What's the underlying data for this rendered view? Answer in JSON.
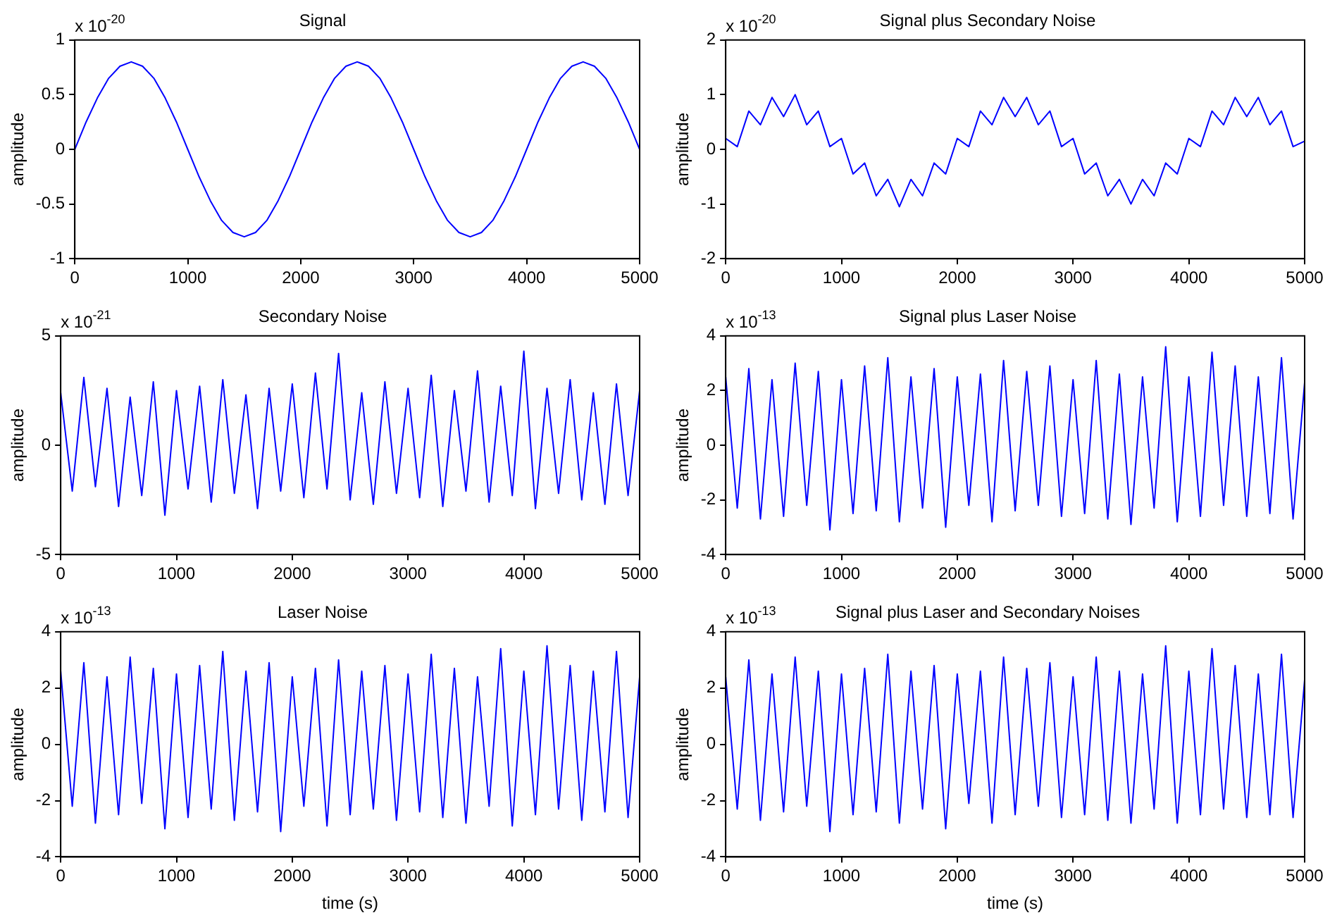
{
  "chart_data": [
    {
      "type": "line",
      "title": "Signal",
      "ylabel": "amplitude",
      "annotations": [
        "x 10$^{-20}$"
      ],
      "xlim": [
        0,
        5000
      ],
      "xticks": [
        0,
        1000,
        2000,
        3000,
        4000,
        5000
      ],
      "ylim": [
        -1,
        1
      ],
      "yticks": [
        -1,
        -0.5,
        0,
        0.5,
        1
      ],
      "grid": false,
      "legend": false,
      "x": [
        0,
        100,
        200,
        300,
        400,
        500,
        600,
        700,
        800,
        900,
        1000,
        1100,
        1200,
        1300,
        1400,
        1500,
        1600,
        1700,
        1800,
        1900,
        2000,
        2100,
        2200,
        2300,
        2400,
        2500,
        2600,
        2700,
        2800,
        2900,
        3000,
        3100,
        3200,
        3300,
        3400,
        3500,
        3600,
        3700,
        3800,
        3900,
        4000,
        4100,
        4200,
        4300,
        4400,
        4500,
        4600,
        4700,
        4800,
        4900,
        5000
      ],
      "series": [
        {
          "color": "#0000ff",
          "values": [
            0,
            0.25,
            0.47,
            0.65,
            0.76,
            0.8,
            0.76,
            0.65,
            0.47,
            0.25,
            0,
            -0.25,
            -0.47,
            -0.65,
            -0.76,
            -0.8,
            -0.76,
            -0.65,
            -0.47,
            -0.25,
            0,
            0.25,
            0.47,
            0.65,
            0.76,
            0.8,
            0.76,
            0.65,
            0.47,
            0.25,
            0,
            -0.25,
            -0.47,
            -0.65,
            -0.76,
            -0.8,
            -0.76,
            -0.65,
            -0.47,
            -0.25,
            0,
            0.25,
            0.47,
            0.65,
            0.76,
            0.8,
            0.76,
            0.65,
            0.47,
            0.25,
            0
          ]
        }
      ]
    },
    {
      "type": "line",
      "title": "Signal plus Secondary Noise",
      "ylabel": "amplitude",
      "annotations": [
        "x 10$^{-20}$"
      ],
      "xlim": [
        0,
        5000
      ],
      "xticks": [
        0,
        1000,
        2000,
        3000,
        4000,
        5000
      ],
      "ylim": [
        -2,
        2
      ],
      "yticks": [
        -2,
        -1,
        0,
        1,
        2
      ],
      "grid": false,
      "legend": false,
      "x": [
        0,
        100,
        200,
        300,
        400,
        500,
        600,
        700,
        800,
        900,
        1000,
        1100,
        1200,
        1300,
        1400,
        1500,
        1600,
        1700,
        1800,
        1900,
        2000,
        2100,
        2200,
        2300,
        2400,
        2500,
        2600,
        2700,
        2800,
        2900,
        3000,
        3100,
        3200,
        3300,
        3400,
        3500,
        3600,
        3700,
        3800,
        3900,
        4000,
        4100,
        4200,
        4300,
        4400,
        4500,
        4600,
        4700,
        4800,
        4900,
        5000
      ],
      "series": [
        {
          "color": "#0000ff",
          "values": [
            0.2,
            0.05,
            0.7,
            0.45,
            0.95,
            0.6,
            1.0,
            0.45,
            0.7,
            0.05,
            0.2,
            -0.45,
            -0.25,
            -0.85,
            -0.55,
            -1.05,
            -0.55,
            -0.85,
            -0.25,
            -0.45,
            0.2,
            0.05,
            0.7,
            0.45,
            0.95,
            0.6,
            0.95,
            0.45,
            0.7,
            0.05,
            0.2,
            -0.45,
            -0.25,
            -0.85,
            -0.55,
            -1.0,
            -0.55,
            -0.85,
            -0.25,
            -0.45,
            0.2,
            0.05,
            0.7,
            0.45,
            0.95,
            0.6,
            0.95,
            0.45,
            0.7,
            0.05,
            0.15
          ]
        }
      ]
    },
    {
      "type": "line",
      "title": "Secondary Noise",
      "ylabel": "amplitude",
      "annotations": [
        "x 10$^{-21}$"
      ],
      "xlim": [
        0,
        5000
      ],
      "xticks": [
        0,
        1000,
        2000,
        3000,
        4000,
        5000
      ],
      "ylim": [
        -5,
        5
      ],
      "yticks": [
        -5,
        0,
        5
      ],
      "grid": false,
      "legend": false,
      "x": [
        0,
        100,
        200,
        300,
        400,
        500,
        600,
        700,
        800,
        900,
        1000,
        1100,
        1200,
        1300,
        1400,
        1500,
        1600,
        1700,
        1800,
        1900,
        2000,
        2100,
        2200,
        2300,
        2400,
        2500,
        2600,
        2700,
        2800,
        2900,
        3000,
        3100,
        3200,
        3300,
        3400,
        3500,
        3600,
        3700,
        3800,
        3900,
        4000,
        4100,
        4200,
        4300,
        4400,
        4500,
        4600,
        4700,
        4800,
        4900,
        5000
      ],
      "series": [
        {
          "color": "#0000ff",
          "values": [
            2.4,
            -2.1,
            3.1,
            -1.9,
            2.6,
            -2.8,
            2.2,
            -2.3,
            2.9,
            -3.2,
            2.5,
            -2.0,
            2.7,
            -2.6,
            3.0,
            -2.2,
            2.3,
            -2.9,
            2.6,
            -2.1,
            2.8,
            -2.4,
            3.3,
            -2.0,
            4.2,
            -2.5,
            2.4,
            -2.7,
            2.9,
            -2.2,
            2.6,
            -2.4,
            3.2,
            -2.8,
            2.5,
            -2.1,
            3.4,
            -2.6,
            2.7,
            -2.3,
            4.3,
            -2.9,
            2.6,
            -2.2,
            3.0,
            -2.5,
            2.4,
            -2.7,
            2.8,
            -2.3,
            2.5
          ]
        }
      ]
    },
    {
      "type": "line",
      "title": "Signal plus Laser Noise",
      "ylabel": "amplitude",
      "annotations": [
        "x 10$^{-13}$"
      ],
      "xlim": [
        0,
        5000
      ],
      "xticks": [
        0,
        1000,
        2000,
        3000,
        4000,
        5000
      ],
      "ylim": [
        -4,
        4
      ],
      "yticks": [
        -4,
        -2,
        0,
        2,
        4
      ],
      "grid": false,
      "legend": false,
      "x": [
        0,
        100,
        200,
        300,
        400,
        500,
        600,
        700,
        800,
        900,
        1000,
        1100,
        1200,
        1300,
        1400,
        1500,
        1600,
        1700,
        1800,
        1900,
        2000,
        2100,
        2200,
        2300,
        2400,
        2500,
        2600,
        2700,
        2800,
        2900,
        3000,
        3100,
        3200,
        3300,
        3400,
        3500,
        3600,
        3700,
        3800,
        3900,
        4000,
        4100,
        4200,
        4300,
        4400,
        4500,
        4600,
        4700,
        4800,
        4900,
        5000
      ],
      "series": [
        {
          "color": "#0000ff",
          "values": [
            2.5,
            -2.3,
            2.8,
            -2.7,
            2.4,
            -2.6,
            3.0,
            -2.2,
            2.7,
            -3.1,
            2.4,
            -2.5,
            2.9,
            -2.4,
            3.2,
            -2.8,
            2.5,
            -2.3,
            2.8,
            -3.0,
            2.5,
            -2.2,
            2.6,
            -2.8,
            3.1,
            -2.4,
            2.7,
            -2.2,
            2.9,
            -2.6,
            2.4,
            -2.5,
            3.1,
            -2.7,
            2.6,
            -2.9,
            2.5,
            -2.3,
            3.6,
            -2.8,
            2.5,
            -2.6,
            3.4,
            -2.2,
            2.9,
            -2.6,
            2.5,
            -2.5,
            3.2,
            -2.7,
            2.3
          ]
        }
      ]
    },
    {
      "type": "line",
      "title": "Laser Noise",
      "xlabel": "time (s)",
      "ylabel": "amplitude",
      "annotations": [
        "x 10$^{-13}$"
      ],
      "xlim": [
        0,
        5000
      ],
      "xticks": [
        0,
        1000,
        2000,
        3000,
        4000,
        5000
      ],
      "ylim": [
        -4,
        4
      ],
      "yticks": [
        -4,
        -2,
        0,
        2,
        4
      ],
      "grid": false,
      "legend": false,
      "x": [
        0,
        100,
        200,
        300,
        400,
        500,
        600,
        700,
        800,
        900,
        1000,
        1100,
        1200,
        1300,
        1400,
        1500,
        1600,
        1700,
        1800,
        1900,
        2000,
        2100,
        2200,
        2300,
        2400,
        2500,
        2600,
        2700,
        2800,
        2900,
        3000,
        3100,
        3200,
        3300,
        3400,
        3500,
        3600,
        3700,
        3800,
        3900,
        4000,
        4100,
        4200,
        4300,
        4400,
        4500,
        4600,
        4700,
        4800,
        4900,
        5000
      ],
      "series": [
        {
          "color": "#0000ff",
          "values": [
            2.6,
            -2.2,
            2.9,
            -2.8,
            2.4,
            -2.5,
            3.1,
            -2.1,
            2.7,
            -3.0,
            2.5,
            -2.6,
            2.8,
            -2.3,
            3.3,
            -2.7,
            2.6,
            -2.4,
            2.9,
            -3.1,
            2.4,
            -2.2,
            2.7,
            -2.9,
            3.0,
            -2.5,
            2.6,
            -2.3,
            2.8,
            -2.7,
            2.5,
            -2.4,
            3.2,
            -2.6,
            2.7,
            -2.8,
            2.4,
            -2.2,
            3.4,
            -2.9,
            2.6,
            -2.5,
            3.5,
            -2.3,
            2.8,
            -2.7,
            2.6,
            -2.4,
            3.3,
            -2.6,
            2.4
          ]
        }
      ]
    },
    {
      "type": "line",
      "title": "Signal plus Laser and Secondary Noises",
      "xlabel": "time (s)",
      "ylabel": "amplitude",
      "annotations": [
        "x 10$^{-13}$"
      ],
      "xlim": [
        0,
        5000
      ],
      "xticks": [
        0,
        1000,
        2000,
        3000,
        4000,
        5000
      ],
      "ylim": [
        -4,
        4
      ],
      "yticks": [
        -4,
        -2,
        0,
        2,
        4
      ],
      "grid": false,
      "legend": false,
      "x": [
        0,
        100,
        200,
        300,
        400,
        500,
        600,
        700,
        800,
        900,
        1000,
        1100,
        1200,
        1300,
        1400,
        1500,
        1600,
        1700,
        1800,
        1900,
        2000,
        2100,
        2200,
        2300,
        2400,
        2500,
        2600,
        2700,
        2800,
        2900,
        3000,
        3100,
        3200,
        3300,
        3400,
        3500,
        3600,
        3700,
        3800,
        3900,
        4000,
        4100,
        4200,
        4300,
        4400,
        4500,
        4600,
        4700,
        4800,
        4900,
        5000
      ],
      "series": [
        {
          "color": "#0000ff",
          "values": [
            2.4,
            -2.3,
            3.0,
            -2.7,
            2.5,
            -2.4,
            3.1,
            -2.2,
            2.6,
            -3.1,
            2.5,
            -2.5,
            2.7,
            -2.4,
            3.2,
            -2.8,
            2.6,
            -2.3,
            2.8,
            -3.0,
            2.5,
            -2.1,
            2.6,
            -2.8,
            3.1,
            -2.5,
            2.7,
            -2.2,
            2.9,
            -2.6,
            2.4,
            -2.5,
            3.1,
            -2.7,
            2.6,
            -2.8,
            2.5,
            -2.3,
            3.5,
            -2.8,
            2.6,
            -2.5,
            3.4,
            -2.3,
            2.8,
            -2.6,
            2.5,
            -2.5,
            3.2,
            -2.6,
            2.3
          ]
        }
      ]
    }
  ]
}
